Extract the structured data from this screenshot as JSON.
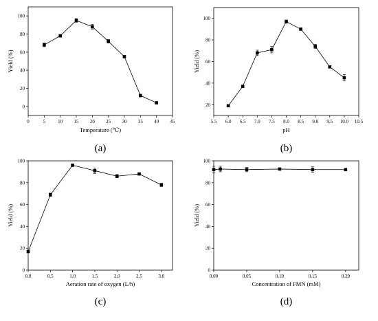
{
  "chart_data": [
    {
      "type": "line",
      "panel_label": "(a)",
      "xlabel": "Temperature (℃)",
      "ylabel": "Yield (%)",
      "xlim": [
        0,
        45
      ],
      "ylim": [
        -10,
        110
      ],
      "xticks": [
        0,
        5,
        10,
        15,
        20,
        25,
        30,
        35,
        40,
        45
      ],
      "yticks": [
        0,
        20,
        40,
        60,
        80,
        100
      ],
      "xtick_labels": [
        "0",
        "5",
        "10",
        "15",
        "20",
        "25",
        "30",
        "35",
        "40",
        "45"
      ],
      "ytick_labels": [
        "0",
        "20",
        "40",
        "60",
        "80",
        "100"
      ],
      "series": [
        {
          "x": [
            5,
            10,
            15,
            20,
            25,
            30,
            35,
            40
          ],
          "y": [
            68,
            78,
            95,
            88,
            72,
            55,
            12,
            4
          ],
          "err": [
            2,
            1.5,
            2,
            2.5,
            2,
            1,
            1.5,
            0.5
          ]
        }
      ]
    },
    {
      "type": "line",
      "panel_label": "(b)",
      "xlabel": "pH",
      "ylabel": "Yield (%)",
      "xlim": [
        5.5,
        10.5
      ],
      "ylim": [
        10,
        110
      ],
      "xticks": [
        5.5,
        6.0,
        6.5,
        7.0,
        7.5,
        8.0,
        8.5,
        9.0,
        9.5,
        10.0,
        10.5
      ],
      "yticks": [
        20,
        40,
        60,
        80,
        100
      ],
      "xtick_labels": [
        "5.5",
        "6.0",
        "6.5",
        "7.0",
        "7.5",
        "8.0",
        "8.5",
        "9.0",
        "9.5",
        "10.0",
        "10.5"
      ],
      "ytick_labels": [
        "20",
        "40",
        "60",
        "80",
        "100"
      ],
      "series": [
        {
          "x": [
            6.0,
            6.5,
            7.0,
            7.5,
            8.0,
            8.5,
            9.0,
            9.5,
            10.0
          ],
          "y": [
            19,
            37,
            68,
            71,
            97,
            90,
            74,
            55,
            45
          ],
          "err": [
            1,
            1,
            2.5,
            3,
            1.5,
            1,
            2,
            1,
            3
          ]
        }
      ]
    },
    {
      "type": "line",
      "panel_label": "(c)",
      "xlabel": "Aeration rate of oxygen (L/h)",
      "ylabel": "Yield (%)",
      "xlim": [
        0,
        3.25
      ],
      "ylim": [
        0,
        100
      ],
      "xticks": [
        0.0,
        0.5,
        1.0,
        1.5,
        2.0,
        2.5,
        3.0
      ],
      "yticks": [
        0,
        20,
        40,
        60,
        80,
        100
      ],
      "xtick_labels": [
        "0.0",
        "0.5",
        "1.0",
        "1.5",
        "2.0",
        "2.5",
        "3.0"
      ],
      "ytick_labels": [
        "0",
        "20",
        "40",
        "60",
        "80",
        "100"
      ],
      "series": [
        {
          "x": [
            0.0,
            0.5,
            1.0,
            1.5,
            2.0,
            2.5,
            3.0
          ],
          "y": [
            17,
            69,
            96,
            91,
            86,
            88,
            78
          ],
          "err": [
            1,
            1.5,
            1,
            2.5,
            1.5,
            1,
            1.5
          ]
        }
      ]
    },
    {
      "type": "line",
      "panel_label": "(d)",
      "xlabel": "Concentration of FMN (mM)",
      "ylabel": "Yield (%)",
      "xlim": [
        0,
        0.22
      ],
      "ylim": [
        0,
        100
      ],
      "xticks": [
        0.0,
        0.05,
        0.1,
        0.15,
        0.2
      ],
      "yticks": [
        0,
        20,
        40,
        60,
        80,
        100
      ],
      "xtick_labels": [
        "0.00",
        "0.05",
        "0.10",
        "0.15",
        "0.20"
      ],
      "ytick_labels": [
        "0",
        "20",
        "40",
        "60",
        "80",
        "100"
      ],
      "series": [
        {
          "x": [
            0.0,
            0.01,
            0.05,
            0.1,
            0.15,
            0.2
          ],
          "y": [
            92,
            92.5,
            92,
            92.5,
            92,
            92
          ],
          "err": [
            3,
            2.5,
            2,
            1,
            2.5,
            1
          ]
        }
      ]
    }
  ]
}
